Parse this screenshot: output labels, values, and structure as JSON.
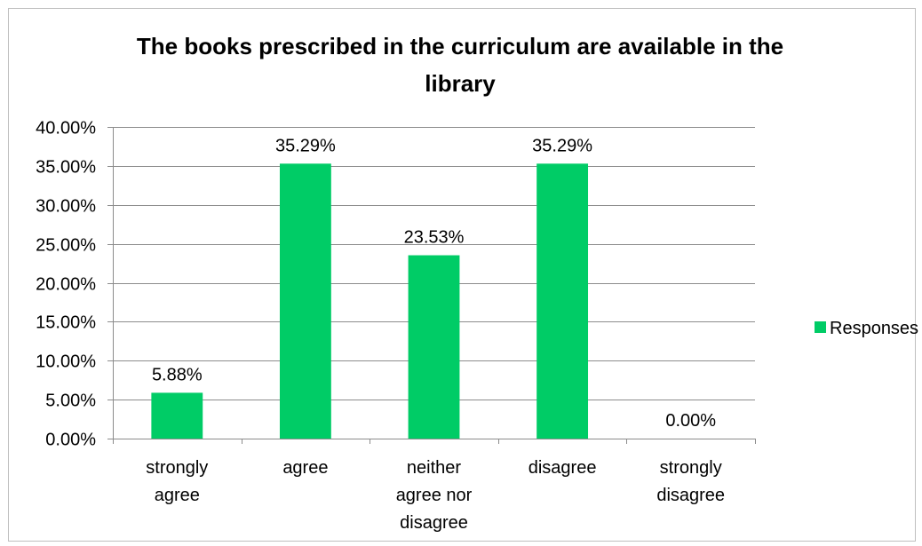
{
  "chart_data": {
    "type": "bar",
    "title_lines": [
      "The books prescribed in the curriculum are available in the",
      "library"
    ],
    "categories": [
      [
        "strongly",
        "agree"
      ],
      [
        "agree"
      ],
      [
        "neither",
        "agree nor",
        "disagree"
      ],
      [
        "disagree"
      ],
      [
        "strongly",
        "disagree"
      ]
    ],
    "series": [
      {
        "name": "Responses",
        "color": "#00cc66",
        "values": [
          5.88,
          35.29,
          23.53,
          35.29,
          0.0
        ],
        "data_labels": [
          "5.88%",
          "35.29%",
          "23.53%",
          "35.29%",
          "0.00%"
        ]
      }
    ],
    "ylim": [
      0,
      40
    ],
    "ytick_labels": [
      "0.00%",
      "5.00%",
      "10.00%",
      "15.00%",
      "20.00%",
      "25.00%",
      "30.00%",
      "35.00%",
      "40.00%"
    ],
    "grid": true,
    "legend_position": "right"
  }
}
